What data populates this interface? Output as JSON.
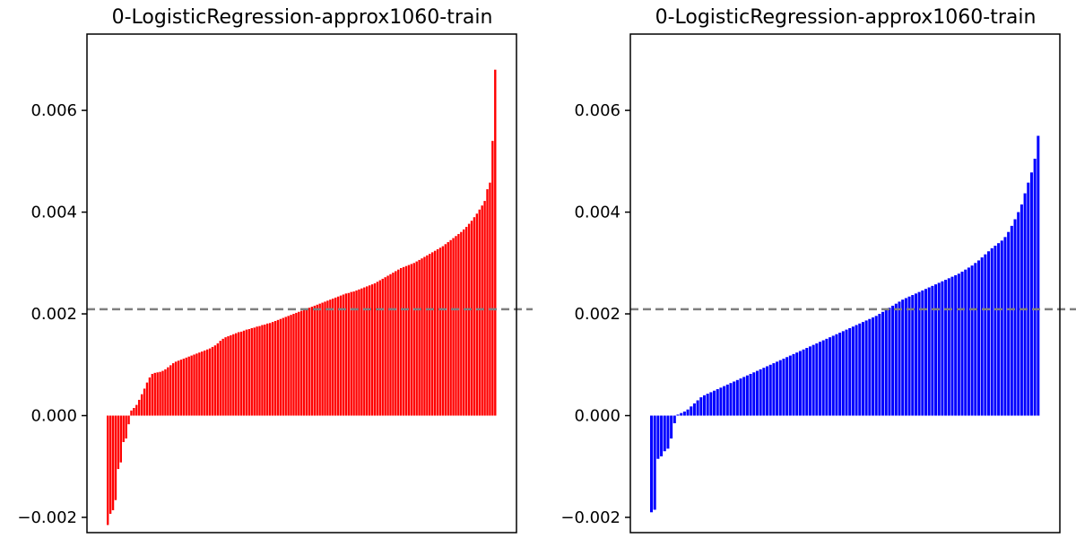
{
  "chart_data": [
    {
      "type": "bar",
      "title": "0-LogisticRegression-approx1060-train",
      "xlabel": "",
      "ylabel": "",
      "ylim": [
        -0.0023,
        0.0075
      ],
      "yticks": [
        -0.002,
        0.0,
        0.002,
        0.004,
        0.006
      ],
      "ytick_labels": [
        "−0.002",
        "0.000",
        "0.002",
        "0.004",
        "0.006"
      ],
      "xticks": [],
      "grid": false,
      "reference_line": 0.00209,
      "bar_color": "#ff0000",
      "values": [
        -0.00215,
        -0.00193,
        -0.00186,
        -0.00166,
        -0.00105,
        -0.00092,
        -0.00052,
        -0.00045,
        -0.00017,
        0.0001,
        0.00015,
        0.00021,
        0.00031,
        0.00042,
        0.00053,
        0.00065,
        0.00075,
        0.00082,
        0.00084,
        0.00085,
        0.00086,
        0.00088,
        0.00091,
        0.00095,
        0.00099,
        0.00103,
        0.00106,
        0.00108,
        0.0011,
        0.00112,
        0.00114,
        0.00116,
        0.00118,
        0.0012,
        0.00122,
        0.00124,
        0.00126,
        0.00128,
        0.0013,
        0.00132,
        0.00135,
        0.00138,
        0.00142,
        0.00147,
        0.00151,
        0.00154,
        0.00156,
        0.00158,
        0.0016,
        0.00162,
        0.00164,
        0.00165,
        0.00167,
        0.00169,
        0.0017,
        0.00172,
        0.00173,
        0.00175,
        0.00176,
        0.00178,
        0.00179,
        0.00181,
        0.00182,
        0.00184,
        0.00186,
        0.00188,
        0.0019,
        0.00192,
        0.00194,
        0.00196,
        0.00198,
        0.002,
        0.00202,
        0.00204,
        0.00206,
        0.00208,
        0.0021,
        0.00212,
        0.00214,
        0.00216,
        0.00218,
        0.0022,
        0.00222,
        0.00224,
        0.00226,
        0.00228,
        0.0023,
        0.00232,
        0.00234,
        0.00236,
        0.00238,
        0.0024,
        0.00241,
        0.00243,
        0.00244,
        0.00246,
        0.00248,
        0.0025,
        0.00252,
        0.00254,
        0.00256,
        0.00258,
        0.0026,
        0.00263,
        0.00266,
        0.00269,
        0.00272,
        0.00275,
        0.00278,
        0.00281,
        0.00284,
        0.00287,
        0.0029,
        0.00292,
        0.00294,
        0.00296,
        0.00298,
        0.003,
        0.00303,
        0.00306,
        0.00309,
        0.00312,
        0.00315,
        0.00318,
        0.00321,
        0.00324,
        0.00327,
        0.0033,
        0.00333,
        0.00337,
        0.00341,
        0.00345,
        0.00349,
        0.00353,
        0.00357,
        0.00361,
        0.00366,
        0.00371,
        0.00377,
        0.00383,
        0.0039,
        0.00397,
        0.00405,
        0.00413,
        0.00422,
        0.00445,
        0.00458,
        0.0054,
        0.0068
      ]
    },
    {
      "type": "bar",
      "title": "0-LogisticRegression-approx1060-train",
      "xlabel": "",
      "ylabel": "",
      "ylim": [
        -0.0023,
        0.0075
      ],
      "yticks": [
        -0.002,
        0.0,
        0.002,
        0.004,
        0.006
      ],
      "ytick_labels": [
        "−0.002",
        "0.000",
        "0.002",
        "0.004",
        "0.006"
      ],
      "xticks": [],
      "grid": false,
      "reference_line": 0.00209,
      "bar_color": "#0000ff",
      "values": [
        -0.0019,
        -0.00185,
        -0.00085,
        -0.0008,
        -0.0007,
        -0.00065,
        -0.00045,
        -0.00015,
        2e-05,
        5e-05,
        8e-05,
        0.00012,
        0.00018,
        0.00024,
        0.0003,
        0.00036,
        0.0004,
        0.00043,
        0.00046,
        0.00049,
        0.00052,
        0.00055,
        0.00058,
        0.00061,
        0.00064,
        0.00067,
        0.0007,
        0.00073,
        0.00076,
        0.00079,
        0.00082,
        0.00085,
        0.00088,
        0.00091,
        0.00094,
        0.00097,
        0.001,
        0.00103,
        0.00106,
        0.00109,
        0.00112,
        0.00115,
        0.00118,
        0.00121,
        0.00124,
        0.00127,
        0.0013,
        0.00133,
        0.00136,
        0.00139,
        0.00142,
        0.00145,
        0.00148,
        0.00151,
        0.00154,
        0.00157,
        0.0016,
        0.00163,
        0.00166,
        0.00169,
        0.00172,
        0.00175,
        0.00178,
        0.00181,
        0.00184,
        0.00187,
        0.0019,
        0.00193,
        0.00196,
        0.002,
        0.00204,
        0.00208,
        0.00212,
        0.00216,
        0.0022,
        0.00224,
        0.00228,
        0.00231,
        0.00234,
        0.00237,
        0.0024,
        0.00243,
        0.00246,
        0.00249,
        0.00252,
        0.00255,
        0.00258,
        0.00261,
        0.00264,
        0.00267,
        0.0027,
        0.00273,
        0.00276,
        0.00279,
        0.00283,
        0.00287,
        0.00291,
        0.00295,
        0.003,
        0.00305,
        0.00311,
        0.00317,
        0.00323,
        0.00329,
        0.00334,
        0.00339,
        0.00344,
        0.00351,
        0.00361,
        0.00373,
        0.00386,
        0.004,
        0.00415,
        0.00437,
        0.00458,
        0.00478,
        0.00505,
        0.0055
      ]
    }
  ]
}
